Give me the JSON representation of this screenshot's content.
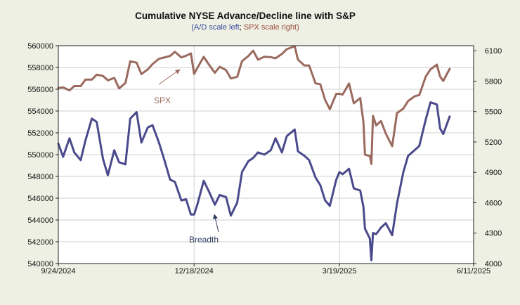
{
  "chart_data": {
    "type": "line",
    "title": "Cumulative NYSE Advance/Decline line with S&P",
    "subtitle": {
      "open": "(",
      "left": "A/D scale left",
      "sep": "; ",
      "right": "SPX scale right",
      "close": ")"
    },
    "x_ticks": [
      "9/24/2024",
      "12/18/2024",
      "3/19/2025",
      "6/11/2025"
    ],
    "x_range": [
      "9/24/2024",
      "6/11/2025"
    ],
    "y_left": {
      "ticks": [
        "540000",
        "542000",
        "544000",
        "546000",
        "548000",
        "550000",
        "552000",
        "554000",
        "556000",
        "558000",
        "560000"
      ],
      "range": [
        540000,
        560000
      ]
    },
    "y_right": {
      "ticks": [
        "4000",
        "4300",
        "4600",
        "4900",
        "5200",
        "5500",
        "5800",
        "6100"
      ],
      "range": [
        4000,
        6150
      ]
    },
    "grid": true,
    "series": [
      {
        "name": "SPX",
        "axis": "right",
        "color": "#9b6a5e",
        "points": [
          [
            "9/24/2024",
            5732
          ],
          [
            "9/27/2024",
            5738
          ],
          [
            "10/1/2024",
            5709
          ],
          [
            "10/4/2024",
            5751
          ],
          [
            "10/8/2024",
            5751
          ],
          [
            "10/11/2024",
            5815
          ],
          [
            "10/15/2024",
            5815
          ],
          [
            "10/18/2024",
            5864
          ],
          [
            "10/22/2024",
            5851
          ],
          [
            "10/25/2024",
            5808
          ],
          [
            "10/29/2024",
            5832
          ],
          [
            "11/1/2024",
            5728
          ],
          [
            "11/5/2024",
            5782
          ],
          [
            "11/8/2024",
            5995
          ],
          [
            "11/12/2024",
            5983
          ],
          [
            "11/15/2024",
            5870
          ],
          [
            "11/19/2024",
            5916
          ],
          [
            "11/22/2024",
            5969
          ],
          [
            "11/26/2024",
            6021
          ],
          [
            "11/29/2024",
            6032
          ],
          [
            "12/3/2024",
            6049
          ],
          [
            "12/6/2024",
            6090
          ],
          [
            "12/10/2024",
            6034
          ],
          [
            "12/13/2024",
            6051
          ],
          [
            "12/16/2024",
            6074
          ],
          [
            "12/18/2024",
            5872
          ],
          [
            "12/20/2024",
            5930
          ],
          [
            "12/24/2024",
            6040
          ],
          [
            "12/27/2024",
            5970
          ],
          [
            "12/31/2024",
            5882
          ],
          [
            "1/3/2025",
            5942
          ],
          [
            "1/7/2025",
            5909
          ],
          [
            "1/10/2025",
            5827
          ],
          [
            "1/14/2025",
            5843
          ],
          [
            "1/17/2025",
            5997
          ],
          [
            "1/21/2025",
            6049
          ],
          [
            "1/24/2025",
            6101
          ],
          [
            "1/27/2025",
            6012
          ],
          [
            "1/31/2025",
            6041
          ],
          [
            "2/4/2025",
            6037
          ],
          [
            "2/7/2025",
            6026
          ],
          [
            "2/11/2025",
            6068
          ],
          [
            "2/14/2025",
            6115
          ],
          [
            "2/19/2025",
            6144
          ],
          [
            "2/21/2025",
            6013
          ],
          [
            "2/25/2025",
            5955
          ],
          [
            "2/28/2025",
            5955
          ],
          [
            "3/4/2025",
            5778
          ],
          [
            "3/7/2025",
            5770
          ],
          [
            "3/10/2025",
            5615
          ],
          [
            "3/13/2025",
            5522
          ],
          [
            "3/17/2025",
            5675
          ],
          [
            "3/19/2025",
            5675
          ],
          [
            "3/21/2025",
            5668
          ],
          [
            "3/25/2025",
            5777
          ],
          [
            "3/28/2025",
            5581
          ],
          [
            "4/1/2025",
            5633
          ],
          [
            "4/3/2025",
            5396
          ],
          [
            "4/4/2025",
            5074
          ],
          [
            "4/7/2025",
            5062
          ],
          [
            "4/8/2025",
            4982
          ],
          [
            "4/9/2025",
            5457
          ],
          [
            "4/11/2025",
            5363
          ],
          [
            "4/14/2025",
            5406
          ],
          [
            "4/17/2025",
            5283
          ],
          [
            "4/21/2025",
            5158
          ],
          [
            "4/24/2025",
            5484
          ],
          [
            "4/28/2025",
            5529
          ],
          [
            "5/1/2025",
            5604
          ],
          [
            "5/5/2025",
            5650
          ],
          [
            "5/8/2025",
            5663
          ],
          [
            "5/12/2025",
            5844
          ],
          [
            "5/15/2025",
            5916
          ],
          [
            "5/19/2025",
            5963
          ],
          [
            "5/21/2025",
            5845
          ],
          [
            "5/23/2025",
            5802
          ],
          [
            "5/27/2025",
            5921
          ]
        ]
      },
      {
        "name": "Breadth",
        "axis": "left",
        "color": "#4a4a8c",
        "points": [
          [
            "9/24/2024",
            551000
          ],
          [
            "9/27/2024",
            549800
          ],
          [
            "10/1/2024",
            551500
          ],
          [
            "10/4/2024",
            550200
          ],
          [
            "10/8/2024",
            549500
          ],
          [
            "10/11/2024",
            551300
          ],
          [
            "10/15/2024",
            553300
          ],
          [
            "10/18/2024",
            553000
          ],
          [
            "10/22/2024",
            549600
          ],
          [
            "10/25/2024",
            548100
          ],
          [
            "10/29/2024",
            550400
          ],
          [
            "11/1/2024",
            549300
          ],
          [
            "11/5/2024",
            549100
          ],
          [
            "11/8/2024",
            553300
          ],
          [
            "11/12/2024",
            553900
          ],
          [
            "11/15/2024",
            551100
          ],
          [
            "11/19/2024",
            552500
          ],
          [
            "11/22/2024",
            552700
          ],
          [
            "11/26/2024",
            551100
          ],
          [
            "11/29/2024",
            549700
          ],
          [
            "12/3/2024",
            547700
          ],
          [
            "12/6/2024",
            547500
          ],
          [
            "12/10/2024",
            545800
          ],
          [
            "12/13/2024",
            545900
          ],
          [
            "12/16/2024",
            544500
          ],
          [
            "12/18/2024",
            544500
          ],
          [
            "12/20/2024",
            545400
          ],
          [
            "12/24/2024",
            547600
          ],
          [
            "12/27/2024",
            546700
          ],
          [
            "12/31/2024",
            545400
          ],
          [
            "1/3/2025",
            546300
          ],
          [
            "1/7/2025",
            546100
          ],
          [
            "1/10/2025",
            544400
          ],
          [
            "1/14/2025",
            545600
          ],
          [
            "1/17/2025",
            548400
          ],
          [
            "1/21/2025",
            549400
          ],
          [
            "1/24/2025",
            549700
          ],
          [
            "1/27/2025",
            550200
          ],
          [
            "1/31/2025",
            550000
          ],
          [
            "2/4/2025",
            550400
          ],
          [
            "2/7/2025",
            551500
          ],
          [
            "2/11/2025",
            550200
          ],
          [
            "2/14/2025",
            551700
          ],
          [
            "2/19/2025",
            552300
          ],
          [
            "2/21/2025",
            550300
          ],
          [
            "2/25/2025",
            549900
          ],
          [
            "2/28/2025",
            549500
          ],
          [
            "3/4/2025",
            547900
          ],
          [
            "3/7/2025",
            547200
          ],
          [
            "3/10/2025",
            545800
          ],
          [
            "3/13/2025",
            545300
          ],
          [
            "3/17/2025",
            547700
          ],
          [
            "3/19/2025",
            548400
          ],
          [
            "3/21/2025",
            548200
          ],
          [
            "3/25/2025",
            548700
          ],
          [
            "3/28/2025",
            546900
          ],
          [
            "4/1/2025",
            546700
          ],
          [
            "4/3/2025",
            545200
          ],
          [
            "4/4/2025",
            543200
          ],
          [
            "4/7/2025",
            542300
          ],
          [
            "4/8/2025",
            540300
          ],
          [
            "4/9/2025",
            542800
          ],
          [
            "4/11/2025",
            542700
          ],
          [
            "4/14/2025",
            543300
          ],
          [
            "4/17/2025",
            543700
          ],
          [
            "4/21/2025",
            542600
          ],
          [
            "4/24/2025",
            545500
          ],
          [
            "4/28/2025",
            548400
          ],
          [
            "5/1/2025",
            549900
          ],
          [
            "5/5/2025",
            550400
          ],
          [
            "5/8/2025",
            550800
          ],
          [
            "5/12/2025",
            553200
          ],
          [
            "5/15/2025",
            554800
          ],
          [
            "5/19/2025",
            554600
          ],
          [
            "5/21/2025",
            552400
          ],
          [
            "5/23/2025",
            551900
          ],
          [
            "5/27/2025",
            553500
          ]
        ]
      }
    ],
    "annotations": [
      {
        "text": "SPX",
        "color": "#9b6a5e",
        "arrow": true
      },
      {
        "text": "Breadth",
        "color": "#2f3a5c",
        "arrow": true
      }
    ]
  }
}
